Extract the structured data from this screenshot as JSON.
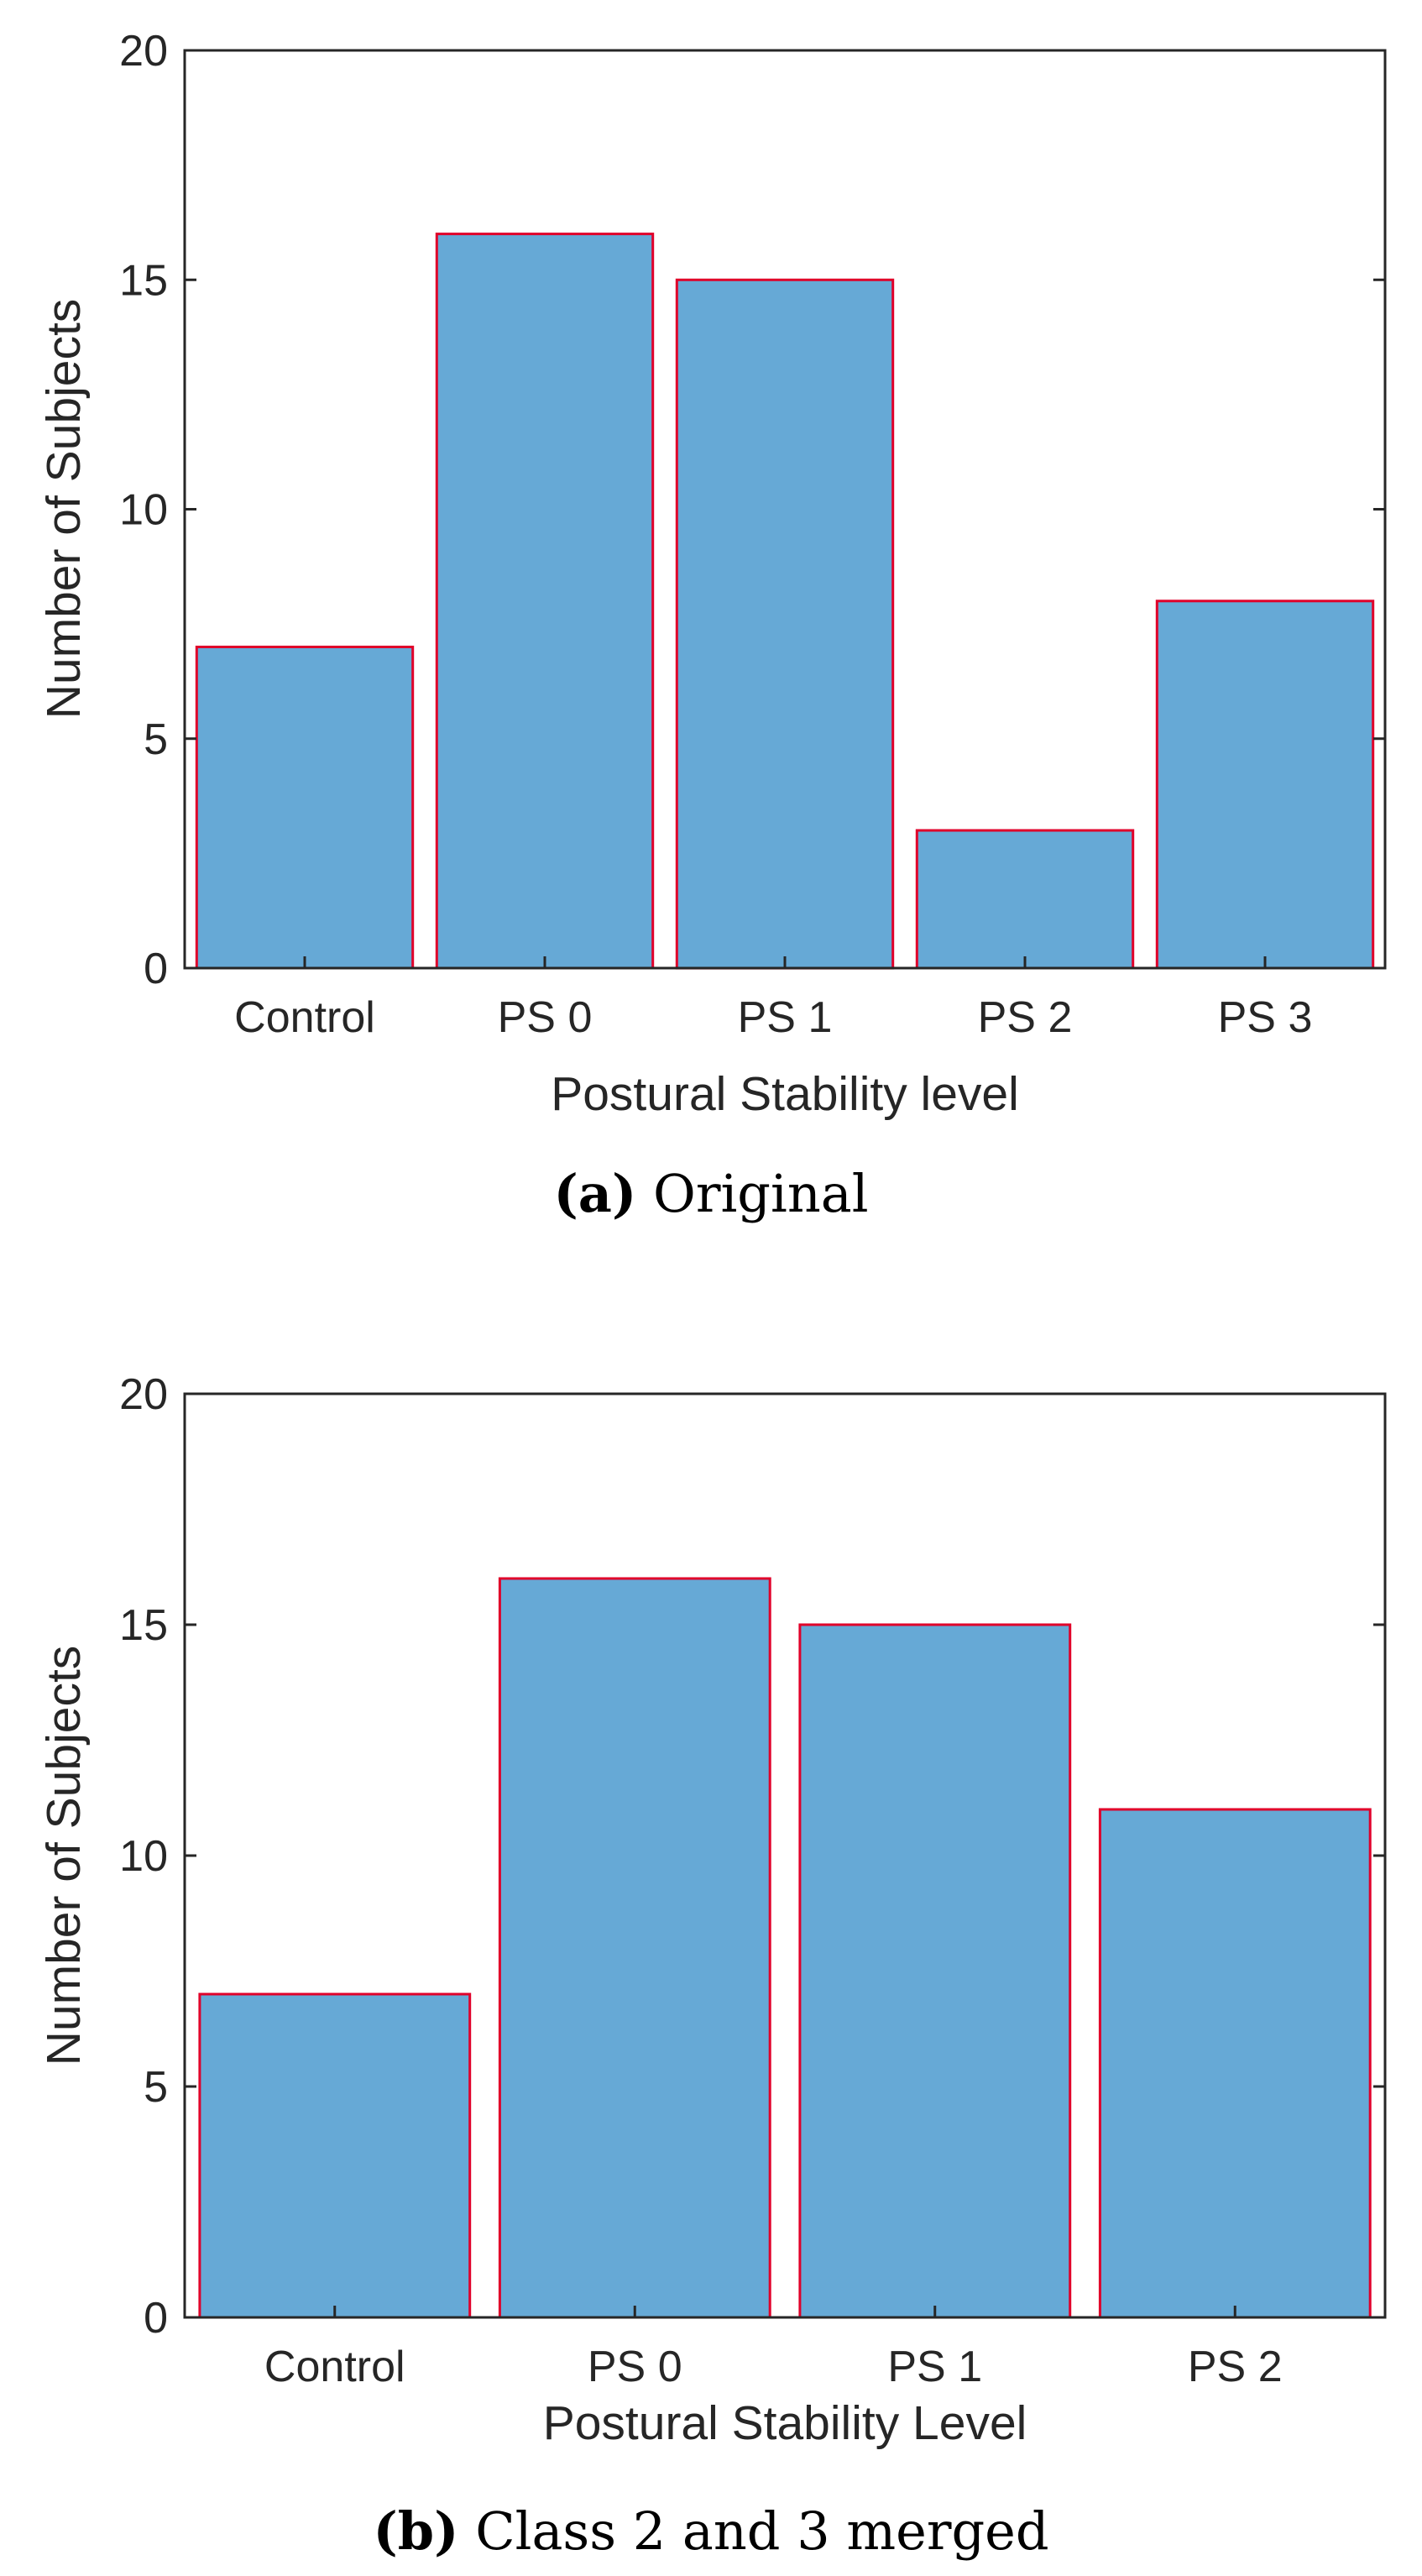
{
  "chart_data": [
    {
      "type": "bar",
      "categories": [
        "Control",
        "PS 0",
        "PS 1",
        "PS 2",
        "PS 3"
      ],
      "values": [
        7,
        16,
        15,
        3,
        8
      ],
      "xlabel": "Postural Stability level",
      "ylabel": "Number of Subjects",
      "ylim": [
        0,
        20
      ],
      "yticks": [
        0,
        5,
        10,
        15,
        20
      ],
      "grid": false,
      "bar_color": "#66a9d6",
      "edge_color": "#e0002a",
      "caption_letter": "(a)",
      "caption_text": "Original"
    },
    {
      "type": "bar",
      "categories": [
        "Control",
        "PS 0",
        "PS 1",
        "PS 2"
      ],
      "values": [
        7,
        16,
        15,
        11
      ],
      "xlabel": "Postural Stability Level",
      "ylabel": "Number of Subjects",
      "ylim": [
        0,
        20
      ],
      "yticks": [
        0,
        5,
        10,
        15,
        20
      ],
      "grid": false,
      "bar_color": "#66a9d6",
      "edge_color": "#e0002a",
      "caption_letter": "(b)",
      "caption_text": "Class 2 and 3 merged"
    }
  ]
}
